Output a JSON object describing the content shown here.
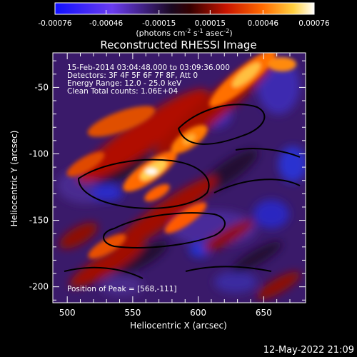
{
  "colorbar": {
    "tick_labels": [
      "-0.00076",
      "-0.00046",
      "-0.00015",
      "0.00015",
      "0.00046",
      "0.00076"
    ],
    "unit_parts": {
      "open": "(photons cm",
      "exp1": "-2",
      "s": " s",
      "exp2": "-1",
      "asec": " asec",
      "exp3": "-2",
      "close": ")"
    }
  },
  "plot": {
    "title": "Reconstructed RHESSI Image",
    "info_lines": [
      "15-Feb-2014 03:04:48.000 to 03:09:36.000",
      "Detectors: 3F 4F 5F 6F 7F 8F, Att 0",
      "Energy Range: 12.0 - 25.0 keV",
      "Clean     Total counts: 1.06E+04"
    ],
    "peak_label": "Position of Peak = [568,-111]",
    "x_label": "Heliocentric X (arcsec)",
    "y_label": "Heliocentric Y (arcsec)",
    "x_ticks": [
      "500",
      "550",
      "600",
      "650"
    ],
    "y_ticks": [
      "-50",
      "-100",
      "-150",
      "-200"
    ],
    "x_range": [
      489,
      682
    ],
    "y_range": [
      -212,
      -24
    ]
  },
  "footer": {
    "date": "12-May-2022 21:09"
  },
  "colors": {
    "background": "#000000",
    "text": "#ffffff",
    "contour": "#000000"
  }
}
